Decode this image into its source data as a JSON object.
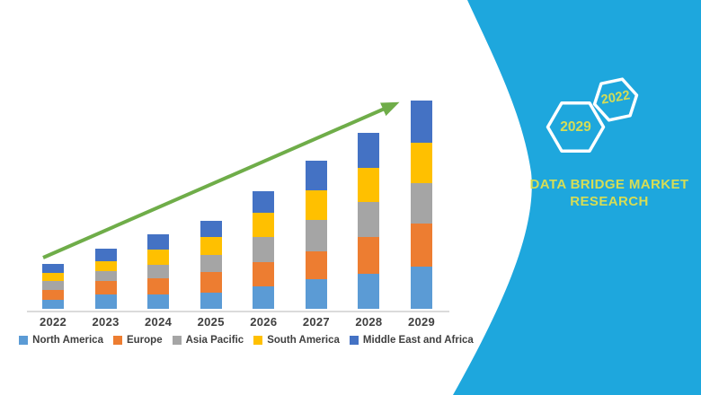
{
  "chart_data": {
    "type": "bar",
    "stacked": true,
    "title": "",
    "xlabel": "",
    "ylabel": "",
    "categories": [
      "2022",
      "2023",
      "2024",
      "2025",
      "2026",
      "2027",
      "2028",
      "2029"
    ],
    "series": [
      {
        "name": "North America",
        "color": "#5B9BD5",
        "values": [
          10,
          16,
          16,
          18,
          25,
          33,
          39,
          47
        ]
      },
      {
        "name": "Europe",
        "color": "#ED7D31",
        "values": [
          11,
          15,
          18,
          23,
          27,
          31,
          41,
          48
        ]
      },
      {
        "name": "Asia Pacific",
        "color": "#A5A5A5",
        "values": [
          10,
          11,
          15,
          19,
          28,
          35,
          39,
          45
        ]
      },
      {
        "name": "South America",
        "color": "#FFC000",
        "values": [
          9,
          11,
          17,
          20,
          27,
          33,
          38,
          45
        ]
      },
      {
        "name": "Middle East and Africa",
        "color": "#4472C4",
        "values": [
          10,
          14,
          17,
          18,
          24,
          33,
          39,
          47
        ]
      }
    ],
    "value_unit": "relative height (no y-axis labels shown)",
    "ylim": [
      0,
      240
    ],
    "gridlines": false,
    "legend_position": "bottom",
    "axis_color": "#DBDBDB",
    "label_color": "#3F3F3F",
    "trend_arrow": {
      "color": "#6FAD49",
      "direction": "up",
      "from": "2022",
      "to": "2029"
    }
  },
  "side_panel": {
    "background_color": "#1EA7DD",
    "accent_text_color": "#D6DD55",
    "hexagon_outline_color": "#FFFFFF",
    "hexagons": [
      {
        "label": "2029"
      },
      {
        "label": "2022"
      }
    ],
    "brand_line1": "DATA BRIDGE MARKET",
    "brand_line2": "RESEARCH"
  }
}
